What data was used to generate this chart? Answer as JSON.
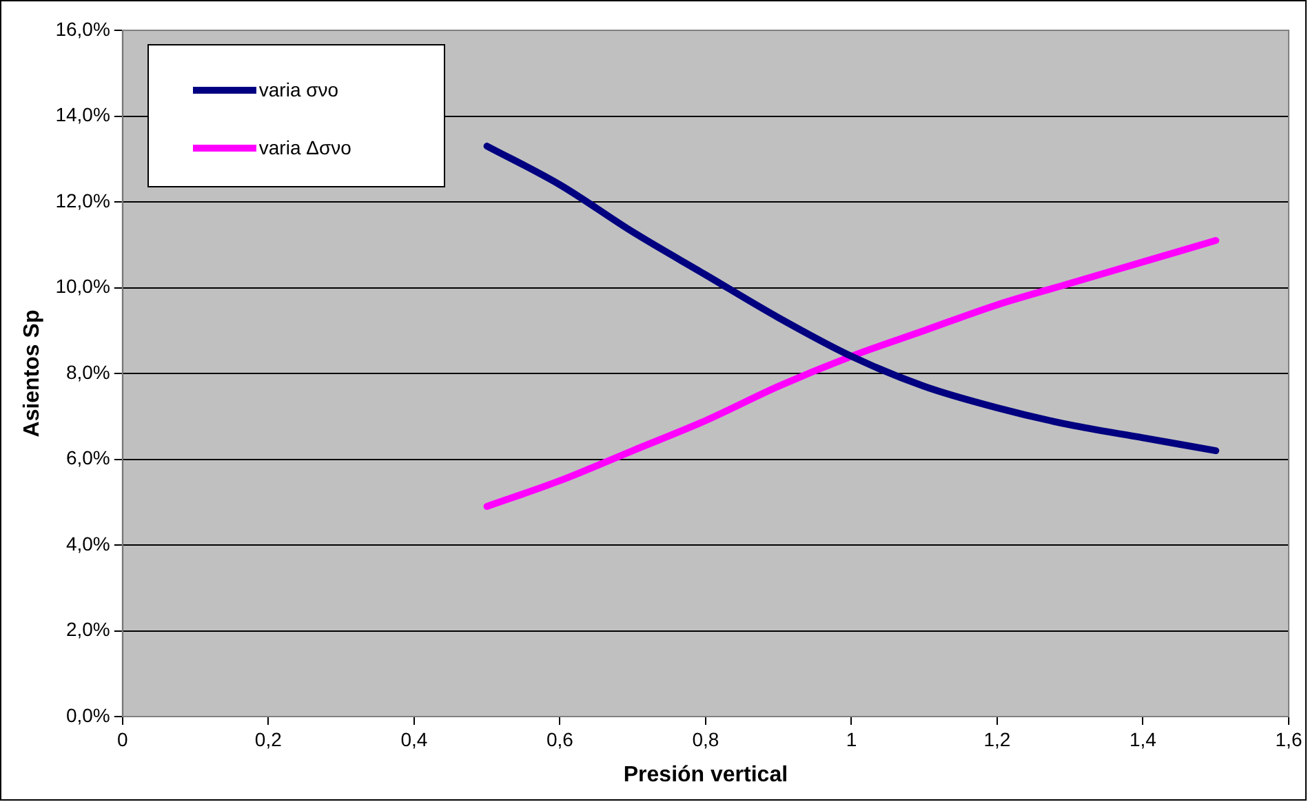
{
  "chart_data": {
    "type": "line",
    "xlabel": "Presión vertical",
    "ylabel": "Asientos Sp",
    "x": [
      0.5,
      0.6,
      0.7,
      0.8,
      0.9,
      1.0,
      1.1,
      1.2,
      1.3,
      1.4,
      1.5
    ],
    "series": [
      {
        "name": "varia σνο",
        "color": "#000080",
        "values": [
          13.3,
          12.4,
          11.3,
          10.3,
          9.3,
          8.4,
          7.7,
          7.2,
          6.8,
          6.5,
          6.2
        ]
      },
      {
        "name": "varia Δσνο",
        "color": "#ff00ff",
        "values": [
          4.9,
          5.5,
          6.2,
          6.9,
          7.7,
          8.4,
          9.0,
          9.6,
          10.1,
          10.6,
          11.1
        ]
      }
    ],
    "xlim": [
      0,
      1.6
    ],
    "xticks": [
      0,
      {
        "value": 0.2,
        "label": "0,2"
      },
      {
        "value": 0.4,
        "label": "0,4"
      },
      {
        "value": 0.6,
        "label": "0,6"
      },
      {
        "value": 0.8,
        "label": "0,8"
      },
      1,
      {
        "value": 1.2,
        "label": "1,2"
      },
      {
        "value": 1.4,
        "label": "1,4"
      },
      {
        "value": 1.6,
        "label": "1,6"
      }
    ],
    "ylim": [
      0,
      16
    ],
    "yticks": [
      {
        "value": 0,
        "label": "0,0%"
      },
      {
        "value": 2,
        "label": "2,0%"
      },
      {
        "value": 4,
        "label": "4,0%"
      },
      {
        "value": 6,
        "label": "6,0%"
      },
      {
        "value": 8,
        "label": "8,0%"
      },
      {
        "value": 10,
        "label": "10,0%"
      },
      {
        "value": 12,
        "label": "12,0%"
      },
      {
        "value": 14,
        "label": "14,0%"
      },
      {
        "value": 16,
        "label": "16,0%"
      }
    ],
    "grid": "y",
    "legend": "top left",
    "marker": "none",
    "line_style": "solid"
  }
}
